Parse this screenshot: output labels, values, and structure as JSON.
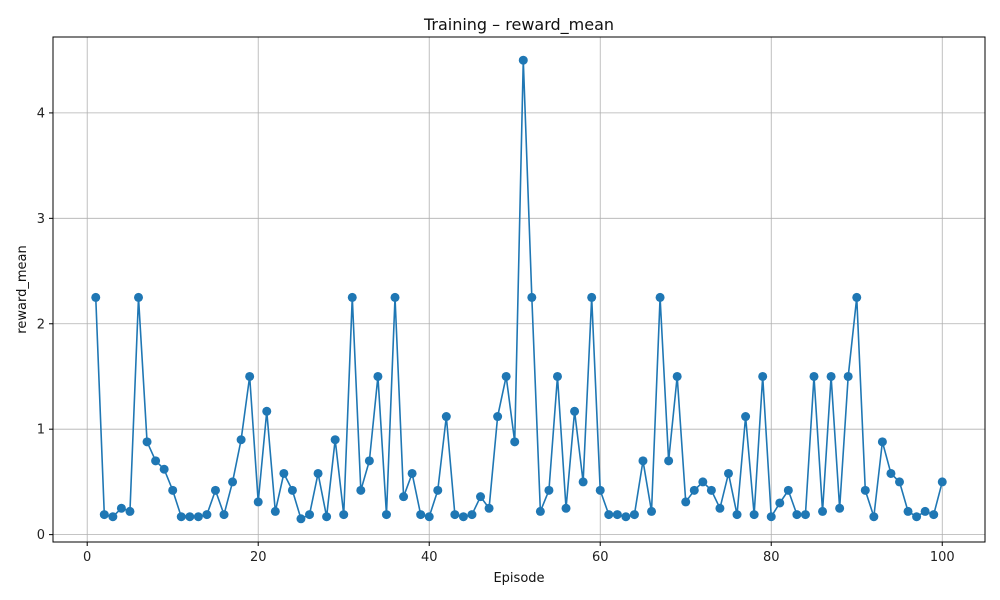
{
  "chart_data": {
    "type": "line",
    "title": "Training – reward_mean",
    "xlabel": "Episode",
    "ylabel": "reward_mean",
    "xlim": [
      -4,
      105
    ],
    "ylim": [
      -0.07,
      4.72
    ],
    "x_ticks": [
      0,
      20,
      40,
      60,
      80,
      100
    ],
    "y_ticks": [
      0,
      1,
      2,
      3,
      4
    ],
    "grid": true,
    "series": [
      {
        "color": "#1f77b4",
        "marker": "circle",
        "x": [
          1,
          2,
          3,
          4,
          5,
          6,
          7,
          8,
          9,
          10,
          11,
          12,
          13,
          14,
          15,
          16,
          17,
          18,
          19,
          20,
          21,
          22,
          23,
          24,
          25,
          26,
          27,
          28,
          29,
          30,
          31,
          32,
          33,
          34,
          35,
          36,
          37,
          38,
          39,
          40,
          41,
          42,
          43,
          44,
          45,
          46,
          47,
          48,
          49,
          50,
          51,
          52,
          53,
          54,
          55,
          56,
          57,
          58,
          59,
          60,
          61,
          62,
          63,
          64,
          65,
          66,
          67,
          68,
          69,
          70,
          71,
          72,
          73,
          74,
          75,
          76,
          77,
          78,
          79,
          80,
          81,
          82,
          83,
          84,
          85,
          86,
          87,
          88,
          89,
          90,
          91,
          92,
          93,
          94,
          95,
          96,
          97,
          98,
          99,
          100
        ],
        "y": [
          2.25,
          0.19,
          0.17,
          0.25,
          0.22,
          2.25,
          0.88,
          0.7,
          0.62,
          0.42,
          0.17,
          0.17,
          0.17,
          0.19,
          0.42,
          0.19,
          0.5,
          0.9,
          1.5,
          0.31,
          1.17,
          0.22,
          0.58,
          0.42,
          0.15,
          0.19,
          0.58,
          0.17,
          0.9,
          0.19,
          2.25,
          0.42,
          0.7,
          1.5,
          0.19,
          2.25,
          0.36,
          0.58,
          0.19,
          0.17,
          0.42,
          1.12,
          0.19,
          0.17,
          0.19,
          0.36,
          0.25,
          1.12,
          1.5,
          0.88,
          4.5,
          2.25,
          0.22,
          0.42,
          1.5,
          0.25,
          1.17,
          0.5,
          2.25,
          0.42,
          0.19,
          0.19,
          0.17,
          0.19,
          0.7,
          0.22,
          2.25,
          0.7,
          1.5,
          0.31,
          0.42,
          0.5,
          0.42,
          0.25,
          0.58,
          0.19,
          1.12,
          0.19,
          1.5,
          0.17,
          0.3,
          0.42,
          0.19,
          0.19,
          1.5,
          0.22,
          1.5,
          0.25,
          1.5,
          2.25,
          0.42,
          0.17,
          0.88,
          0.58,
          0.5,
          0.22,
          0.17,
          0.22,
          0.19,
          0.5
        ]
      }
    ]
  }
}
